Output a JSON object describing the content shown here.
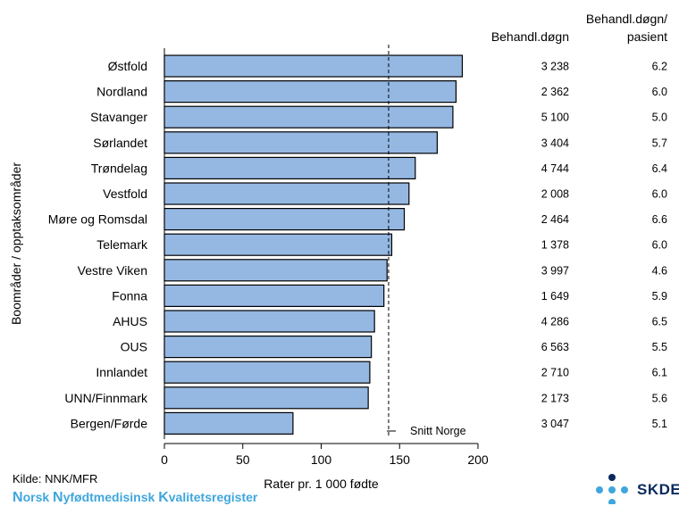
{
  "chart_data": {
    "type": "bar",
    "orientation": "horizontal",
    "categories": [
      "Østfold",
      "Nordland",
      "Stavanger",
      "Sørlandet",
      "Trøndelag",
      "Vestfold",
      "Møre og Romsdal",
      "Telemark",
      "Vestre Viken",
      "Fonna",
      "AHUS",
      "OUS",
      "Innlandet",
      "UNN/Finnmark",
      "Bergen/Førde"
    ],
    "values": [
      190,
      186,
      184,
      174,
      160,
      156,
      153,
      145,
      142,
      140,
      134,
      132,
      131,
      130,
      82
    ],
    "behandl_dogn": [
      "3 238",
      "2 362",
      "5 100",
      "3 404",
      "4 744",
      "2 008",
      "2 464",
      "1 378",
      "3 997",
      "1 649",
      "4 286",
      "6 563",
      "2 710",
      "2 173",
      "3 047"
    ],
    "behandl_dogn_per_pasient": [
      "6.2",
      "6.0",
      "5.0",
      "5.7",
      "6.4",
      "6.0",
      "6.6",
      "6.0",
      "4.6",
      "5.9",
      "6.5",
      "5.5",
      "6.1",
      "5.6",
      "5.1"
    ],
    "reference_line": {
      "label": "Snitt Norge",
      "value": 143
    },
    "xlabel": "Rater pr. 1 000 fødte",
    "ylabel": "Boområder / opptaksområder",
    "xlim": [
      0,
      200
    ],
    "xticks": [
      0,
      50,
      100,
      150,
      200
    ],
    "column_headers": {
      "dogn": "Behandl.døgn",
      "per_pasient_line1": "Behandl.døgn/",
      "per_pasient_line2": "pasient"
    },
    "grid": false,
    "colors": {
      "bar": "#95b8e3",
      "bar_stroke": "#000000"
    }
  },
  "footer": {
    "source": "Kilde: NNK/MFR",
    "register_parts": [
      {
        "cap": "N",
        "rest": "orsk "
      },
      {
        "cap": "N",
        "rest": "yfødtmedisinsk "
      },
      {
        "cap": "K",
        "rest": "valitetsregister"
      }
    ],
    "logo_text": "SKDE",
    "colors": {
      "register": "#3fa6dd",
      "logo_dark": "#0a2a5e",
      "logo_light": "#3fa6dd"
    }
  }
}
